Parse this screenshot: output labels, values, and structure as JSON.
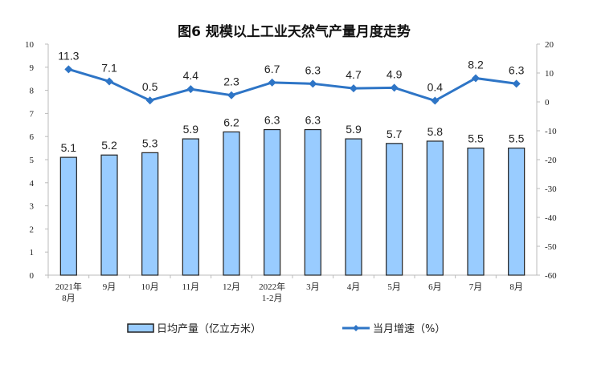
{
  "chart_data": {
    "type": "bar+line",
    "title": "图6  规模以上工业天然气产量月度走势",
    "categories": [
      [
        "2021年",
        "8月"
      ],
      [
        "9月"
      ],
      [
        "10月"
      ],
      [
        "11月"
      ],
      [
        "12月"
      ],
      [
        "2022年",
        "1-2月"
      ],
      [
        "3月"
      ],
      [
        "4月"
      ],
      [
        "5月"
      ],
      [
        "6月"
      ],
      [
        "7月"
      ],
      [
        "8月"
      ]
    ],
    "series": [
      {
        "name": "日均产量（亿立方米）",
        "type": "bar",
        "axis": "left",
        "color": "#99ccff",
        "values": [
          5.1,
          5.2,
          5.3,
          5.9,
          6.2,
          6.3,
          6.3,
          5.9,
          5.7,
          5.8,
          5.5,
          5.5
        ]
      },
      {
        "name": "当月增速（%）",
        "type": "line",
        "axis": "right",
        "color": "#2e75c6",
        "values": [
          11.3,
          7.1,
          0.5,
          4.4,
          2.3,
          6.7,
          6.3,
          4.7,
          4.9,
          0.4,
          8.2,
          6.3
        ]
      }
    ],
    "left_axis": {
      "ylim": [
        0,
        10
      ],
      "ticks": [
        0,
        1,
        2,
        3,
        4,
        5,
        6,
        7,
        8,
        9,
        10
      ]
    },
    "right_axis": {
      "ylim": [
        -60,
        20
      ],
      "ticks": [
        -60,
        -50,
        -40,
        -30,
        -20,
        -10,
        0,
        10,
        20
      ]
    },
    "grid": false,
    "legend": "bottom"
  }
}
